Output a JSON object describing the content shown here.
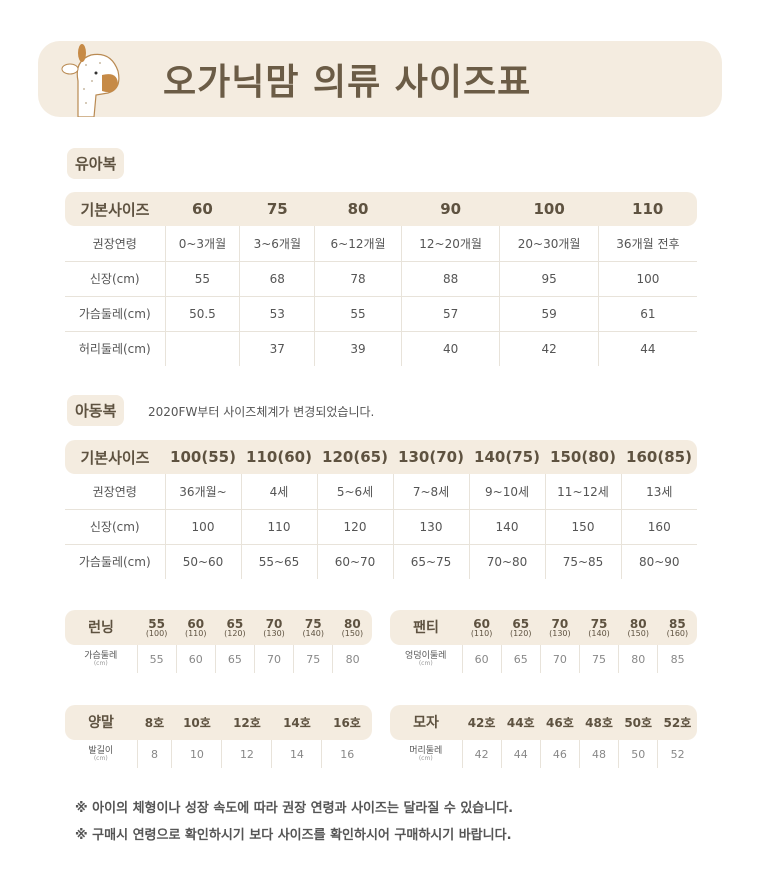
{
  "title": "오가닉맘 의류 사이즈표",
  "colors": {
    "banner": "#f4ece0",
    "text": "#6b5c46"
  },
  "baby": {
    "tag": "유아복",
    "header": [
      "기본사이즈",
      "60",
      "75",
      "80",
      "90",
      "100",
      "110"
    ],
    "rows": [
      [
        "권장연령",
        "0~3개월",
        "3~6개월",
        "6~12개월",
        "12~20개월",
        "20~30개월",
        "36개월 전후"
      ],
      [
        "신장(cm)",
        "55",
        "68",
        "78",
        "88",
        "95",
        "100"
      ],
      [
        "가슴둘레(cm)",
        "50.5",
        "53",
        "55",
        "57",
        "59",
        "61"
      ],
      [
        "허리둘레(cm)",
        "",
        "37",
        "39",
        "40",
        "42",
        "44"
      ]
    ]
  },
  "kids": {
    "tag": "아동복",
    "note": "2020FW부터 사이즈체계가 변경되었습니다.",
    "header": [
      "기본사이즈",
      "100(55)",
      "110(60)",
      "120(65)",
      "130(70)",
      "140(75)",
      "150(80)",
      "160(85)"
    ],
    "rows": [
      [
        "권장연령",
        "36개월~",
        "4세",
        "5~6세",
        "7~8세",
        "9~10세",
        "11~12세",
        "13세"
      ],
      [
        "신장(cm)",
        "100",
        "110",
        "120",
        "130",
        "140",
        "150",
        "160"
      ],
      [
        "가슴둘레(cm)",
        "50~60",
        "55~65",
        "60~70",
        "65~75",
        "70~80",
        "75~85",
        "80~90"
      ]
    ]
  },
  "running": {
    "label": "런닝",
    "sizes": [
      [
        "55",
        "(100)"
      ],
      [
        "60",
        "(110)"
      ],
      [
        "65",
        "(120)"
      ],
      [
        "70",
        "(130)"
      ],
      [
        "75",
        "(140)"
      ],
      [
        "80",
        "(150)"
      ]
    ],
    "row_label": "가슴둘레",
    "unit": "(cm)",
    "values": [
      "55",
      "60",
      "65",
      "70",
      "75",
      "80"
    ]
  },
  "panty": {
    "label": "팬티",
    "sizes": [
      [
        "60",
        "(110)"
      ],
      [
        "65",
        "(120)"
      ],
      [
        "70",
        "(130)"
      ],
      [
        "75",
        "(140)"
      ],
      [
        "80",
        "(150)"
      ],
      [
        "85",
        "(160)"
      ]
    ],
    "row_label": "엉덩이둘레",
    "unit": "(cm)",
    "values": [
      "60",
      "65",
      "70",
      "75",
      "80",
      "85"
    ]
  },
  "socks": {
    "label": "양말",
    "sizes": [
      [
        "8호",
        ""
      ],
      [
        "10호",
        ""
      ],
      [
        "12호",
        ""
      ],
      [
        "14호",
        ""
      ],
      [
        "16호",
        ""
      ]
    ],
    "row_label": "발길이",
    "unit": "(cm)",
    "values": [
      "8",
      "10",
      "12",
      "14",
      "16"
    ]
  },
  "hat": {
    "label": "모자",
    "sizes": [
      [
        "42호",
        ""
      ],
      [
        "44호",
        ""
      ],
      [
        "46호",
        ""
      ],
      [
        "48호",
        ""
      ],
      [
        "50호",
        ""
      ],
      [
        "52호",
        ""
      ]
    ],
    "row_label": "머리둘레",
    "unit": "(cm)",
    "values": [
      "42",
      "44",
      "46",
      "48",
      "50",
      "52"
    ]
  },
  "notes": [
    "※ 아이의 체형이나 성장 속도에 따라 권장 연령과 사이즈는 달라질 수 있습니다.",
    "※ 구매시 연령으로 확인하시기 보다 사이즈를 확인하시어 구매하시기 바랍니다."
  ]
}
